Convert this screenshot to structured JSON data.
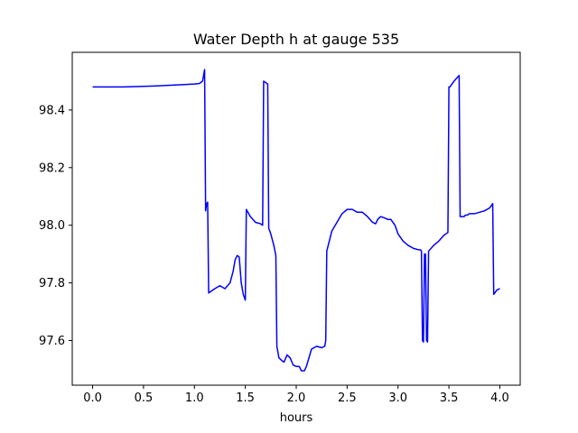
{
  "chart_data": {
    "type": "line",
    "title": "Water Depth h at gauge 535",
    "xlabel": "hours",
    "ylabel": "",
    "xlim": [
      -0.2,
      4.2
    ],
    "ylim": [
      97.445,
      98.6
    ],
    "xticks": [
      0.0,
      0.5,
      1.0,
      1.5,
      2.0,
      2.5,
      3.0,
      3.5,
      4.0
    ],
    "xtick_labels": [
      "0.0",
      "0.5",
      "1.0",
      "1.5",
      "2.0",
      "2.5",
      "3.0",
      "3.5",
      "4.0"
    ],
    "yticks": [
      97.6,
      97.8,
      98.0,
      98.2,
      98.4
    ],
    "ytick_labels": [
      "97.6",
      "97.8",
      "98.0",
      "98.2",
      "98.4"
    ],
    "grid": false,
    "series": [
      {
        "color": "#0000ff",
        "x": [
          0.0,
          0.3,
          0.6,
          0.9,
          1.0,
          1.05,
          1.08,
          1.1,
          1.11,
          1.12,
          1.13,
          1.14,
          1.2,
          1.25,
          1.3,
          1.35,
          1.38,
          1.4,
          1.42,
          1.44,
          1.46,
          1.48,
          1.5,
          1.51,
          1.55,
          1.6,
          1.65,
          1.67,
          1.68,
          1.7,
          1.72,
          1.73,
          1.75,
          1.78,
          1.8,
          1.81,
          1.83,
          1.86,
          1.88,
          1.91,
          1.94,
          1.97,
          2.0,
          2.03,
          2.05,
          2.08,
          2.1,
          2.15,
          2.2,
          2.25,
          2.28,
          2.29,
          2.3,
          2.35,
          2.4,
          2.45,
          2.5,
          2.55,
          2.6,
          2.65,
          2.7,
          2.75,
          2.78,
          2.8,
          2.83,
          2.87,
          2.9,
          2.93,
          2.97,
          3.0,
          3.05,
          3.1,
          3.15,
          3.2,
          3.22,
          3.23,
          3.24,
          3.25,
          3.26,
          3.27,
          3.28,
          3.29,
          3.3,
          3.35,
          3.4,
          3.45,
          3.49,
          3.5,
          3.51,
          3.55,
          3.6,
          3.61,
          3.65,
          3.66,
          3.68,
          3.7,
          3.75,
          3.8,
          3.85,
          3.9,
          3.93,
          3.94,
          3.95,
          3.97,
          4.0
        ],
        "y": [
          98.48,
          98.48,
          98.483,
          98.488,
          98.49,
          98.492,
          98.5,
          98.54,
          98.05,
          98.075,
          98.08,
          97.765,
          97.78,
          97.79,
          97.78,
          97.8,
          97.84,
          97.88,
          97.895,
          97.89,
          97.8,
          97.76,
          97.74,
          98.055,
          98.03,
          98.01,
          98.005,
          98.0,
          98.5,
          98.495,
          98.49,
          97.99,
          97.97,
          97.93,
          97.895,
          97.58,
          97.54,
          97.53,
          97.525,
          97.55,
          97.54,
          97.515,
          97.51,
          97.51,
          97.495,
          97.495,
          97.51,
          97.57,
          97.58,
          97.575,
          97.58,
          97.6,
          97.91,
          97.98,
          98.01,
          98.04,
          98.055,
          98.055,
          98.045,
          98.045,
          98.03,
          98.01,
          98.005,
          98.02,
          98.03,
          98.025,
          98.02,
          98.02,
          98.0,
          97.97,
          97.945,
          97.93,
          97.92,
          97.915,
          97.915,
          97.91,
          97.6,
          97.595,
          97.9,
          97.9,
          97.6,
          97.595,
          97.91,
          97.93,
          97.945,
          97.965,
          97.975,
          98.48,
          98.48,
          98.5,
          98.52,
          98.03,
          98.03,
          98.035,
          98.035,
          98.04,
          98.04,
          98.045,
          98.05,
          98.06,
          98.075,
          97.76,
          97.765,
          97.775,
          97.78
        ]
      }
    ]
  }
}
